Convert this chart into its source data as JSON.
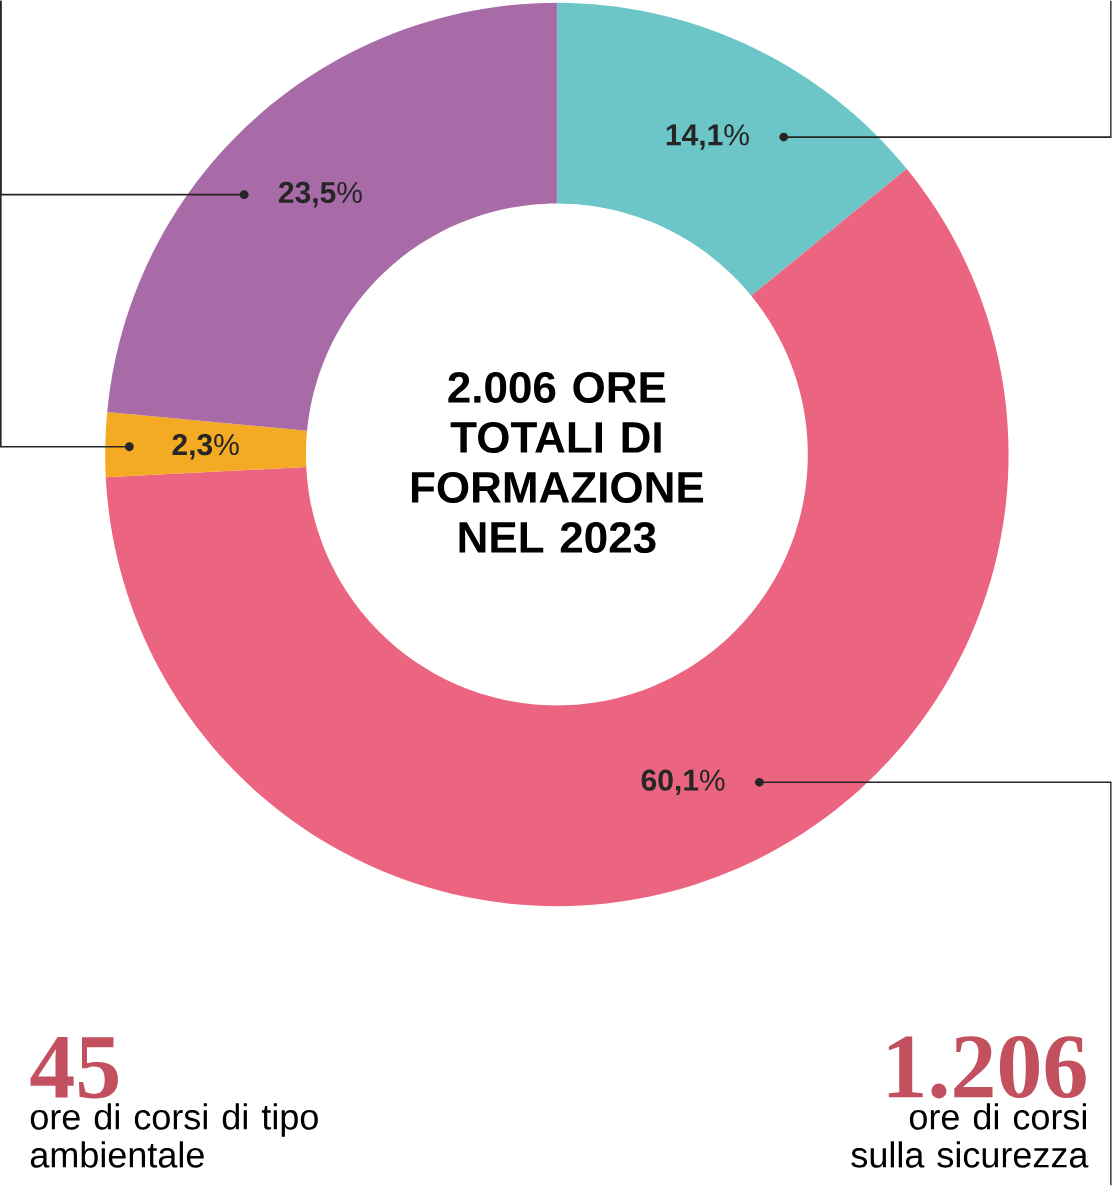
{
  "chart_data": {
    "type": "donut",
    "title": "2.006 ORE TOTALI DI FORMAZIONE NEL 2023",
    "categories": [
      null,
      null,
      null,
      null
    ],
    "values": [
      14.1,
      60.1,
      2.3,
      23.5
    ],
    "colors": [
      "#6cc6c8",
      "#ec6580",
      "#f4aa22",
      "#a86ba8"
    ],
    "value_labels": [
      "**14,1**%",
      "**60,1**%",
      "**2,3**%",
      "**23,5**%"
    ],
    "annotations": [
      "45",
      "ore di corsi di tipo ambientale",
      "1.206",
      "ore di corsi sulla sicurezza"
    ]
  }
}
